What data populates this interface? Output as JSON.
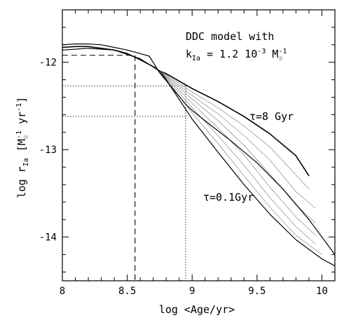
{
  "chart_data": {
    "type": "line",
    "xlabel": "log <Age/yr>",
    "ylabel_main": "log r",
    "ylabel_sub": "Ia",
    "ylabel_units_open": " [M",
    "ylabel_units_sup1": "-1",
    "ylabel_units_mid": " yr",
    "ylabel_units_sup2": "-1",
    "ylabel_units_close": "]",
    "xlim": [
      8.0,
      10.1
    ],
    "ylim": [
      -14.5,
      -11.4
    ],
    "x_major_ticks": [
      8,
      8.5,
      9,
      9.5,
      10
    ],
    "x_tick_labels": [
      "8",
      "8.5",
      "9",
      "9.5",
      "10"
    ],
    "x_minor_step": 0.1,
    "y_major_ticks": [
      -12,
      -13,
      -14
    ],
    "y_tick_labels": [
      "-12",
      "-13",
      "-14"
    ],
    "y_minor_step": 0.2,
    "annotation_line1": "DDC model with",
    "annotation_k": "k",
    "annotation_k_sub": "Ia",
    "annotation_k_value": " = 1.2 10",
    "annotation_k_exp": "-3",
    "annotation_k_unit": " M",
    "annotation_k_unit_exp": "-1",
    "label_tau8": "τ=8 Gyr",
    "label_tau01": "τ=0.1Gyr",
    "reference_lines": {
      "dashed_x": 8.56,
      "dashed_y": -11.92,
      "dotted_x": 8.95,
      "dotted_y_upper": -12.27,
      "dotted_y_lower": -12.62
    },
    "series": [
      {
        "style": "thick",
        "points": [
          [
            8.0,
            -11.83
          ],
          [
            8.1,
            -11.82
          ],
          [
            8.2,
            -11.82
          ],
          [
            8.3,
            -11.84
          ],
          [
            8.4,
            -11.86
          ],
          [
            8.5,
            -11.9
          ],
          [
            8.6,
            -11.97
          ],
          [
            8.7,
            -12.05
          ],
          [
            8.75,
            -12.1
          ],
          [
            8.8,
            -12.13
          ],
          [
            9.0,
            -12.3
          ],
          [
            9.2,
            -12.45
          ],
          [
            9.4,
            -12.62
          ],
          [
            9.6,
            -12.82
          ],
          [
            9.8,
            -13.07
          ],
          [
            9.9,
            -13.3
          ]
        ]
      },
      {
        "style": "thin",
        "points": [
          [
            8.0,
            -11.86
          ],
          [
            8.2,
            -11.84
          ],
          [
            8.4,
            -11.86
          ],
          [
            8.6,
            -11.96
          ],
          [
            8.75,
            -12.1
          ],
          [
            8.8,
            -12.14
          ],
          [
            9.0,
            -12.34
          ],
          [
            9.2,
            -12.52
          ],
          [
            9.4,
            -12.73
          ],
          [
            9.6,
            -12.97
          ],
          [
            9.8,
            -13.29
          ],
          [
            9.9,
            -13.45
          ]
        ]
      },
      {
        "style": "thin",
        "points": [
          [
            8.0,
            -11.86
          ],
          [
            8.2,
            -11.84
          ],
          [
            8.4,
            -11.86
          ],
          [
            8.6,
            -11.96
          ],
          [
            8.75,
            -12.1
          ],
          [
            8.8,
            -12.15
          ],
          [
            9.0,
            -12.38
          ],
          [
            9.2,
            -12.59
          ],
          [
            9.4,
            -12.84
          ],
          [
            9.6,
            -13.12
          ],
          [
            9.8,
            -13.48
          ],
          [
            9.95,
            -13.67
          ]
        ]
      },
      {
        "style": "thin",
        "points": [
          [
            8.0,
            -11.86
          ],
          [
            8.2,
            -11.84
          ],
          [
            8.4,
            -11.86
          ],
          [
            8.6,
            -11.96
          ],
          [
            8.75,
            -12.1
          ],
          [
            8.8,
            -12.16
          ],
          [
            9.0,
            -12.42
          ],
          [
            9.2,
            -12.67
          ],
          [
            9.4,
            -12.95
          ],
          [
            9.6,
            -13.28
          ],
          [
            9.8,
            -13.63
          ],
          [
            9.95,
            -13.84
          ]
        ]
      },
      {
        "style": "thin",
        "points": [
          [
            8.0,
            -11.86
          ],
          [
            8.2,
            -11.84
          ],
          [
            8.4,
            -11.86
          ],
          [
            8.6,
            -11.96
          ],
          [
            8.75,
            -12.1
          ],
          [
            8.8,
            -12.17
          ],
          [
            9.0,
            -12.47
          ],
          [
            9.2,
            -12.75
          ],
          [
            9.4,
            -13.06
          ],
          [
            9.6,
            -13.43
          ],
          [
            9.8,
            -13.77
          ],
          [
            9.95,
            -13.98
          ]
        ]
      },
      {
        "style": "thin",
        "points": [
          [
            8.0,
            -11.86
          ],
          [
            8.2,
            -11.84
          ],
          [
            8.4,
            -11.86
          ],
          [
            8.6,
            -11.96
          ],
          [
            8.75,
            -12.1
          ],
          [
            8.8,
            -12.18
          ],
          [
            9.0,
            -12.52
          ],
          [
            9.2,
            -12.84
          ],
          [
            9.4,
            -13.18
          ],
          [
            9.6,
            -13.55
          ],
          [
            9.8,
            -13.88
          ],
          [
            9.95,
            -14.08
          ]
        ]
      },
      {
        "style": "thin",
        "points": [
          [
            8.0,
            -11.86
          ],
          [
            8.2,
            -11.84
          ],
          [
            8.4,
            -11.86
          ],
          [
            8.6,
            -11.96
          ],
          [
            8.75,
            -12.1
          ],
          [
            8.8,
            -12.19
          ],
          [
            9.0,
            -12.58
          ],
          [
            9.2,
            -12.93
          ],
          [
            9.4,
            -13.3
          ],
          [
            9.6,
            -13.66
          ],
          [
            9.8,
            -13.98
          ],
          [
            10.0,
            -14.2
          ]
        ]
      },
      {
        "style": "medium",
        "points": [
          [
            8.0,
            -11.86
          ],
          [
            8.2,
            -11.84
          ],
          [
            8.4,
            -11.86
          ],
          [
            8.6,
            -11.96
          ],
          [
            8.75,
            -12.1
          ],
          [
            8.8,
            -12.2
          ],
          [
            9.0,
            -12.65
          ],
          [
            9.2,
            -13.03
          ],
          [
            9.4,
            -13.4
          ],
          [
            9.6,
            -13.74
          ],
          [
            9.8,
            -14.03
          ],
          [
            10.0,
            -14.25
          ],
          [
            10.1,
            -14.33
          ]
        ]
      },
      {
        "style": "medium",
        "points": [
          [
            8.0,
            -11.8
          ],
          [
            8.1,
            -11.79
          ],
          [
            8.2,
            -11.79
          ],
          [
            8.3,
            -11.8
          ],
          [
            8.4,
            -11.83
          ],
          [
            8.5,
            -11.86
          ],
          [
            8.6,
            -11.9
          ],
          [
            8.67,
            -11.93
          ],
          [
            8.75,
            -12.12
          ],
          [
            8.85,
            -12.3
          ],
          [
            8.95,
            -12.48
          ],
          [
            9.0,
            -12.55
          ],
          [
            9.1,
            -12.67
          ],
          [
            9.3,
            -12.9
          ],
          [
            9.5,
            -13.15
          ],
          [
            9.7,
            -13.45
          ],
          [
            9.9,
            -13.8
          ],
          [
            10.1,
            -14.2
          ]
        ]
      }
    ]
  }
}
